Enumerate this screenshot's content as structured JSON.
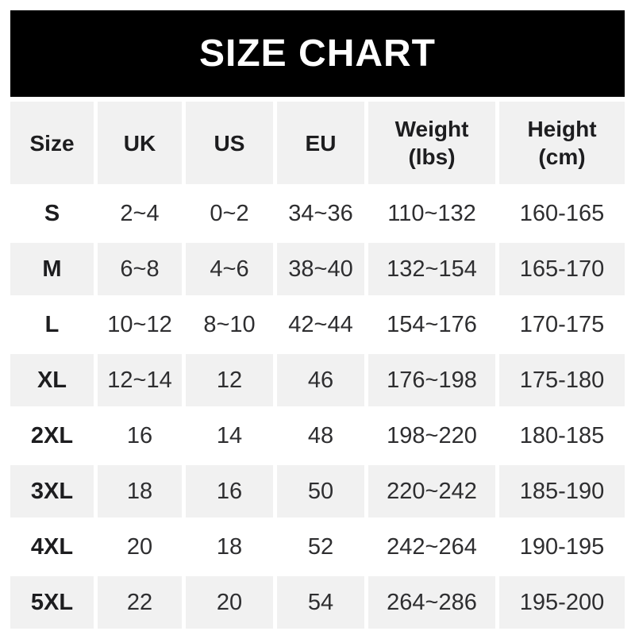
{
  "banner": {
    "note": "top black ribbon"
  },
  "colors": {
    "page_bg": "#ffffff",
    "banner_bg": "#000000",
    "banner_text": "#ffffff",
    "stripe_bg": "#f1f1f1",
    "row_bg": "#ffffff",
    "header_text": "#1d1d1f",
    "cell_text": "#2e2e30"
  },
  "chart_data": {
    "type": "table",
    "title": "SIZE CHART",
    "columns": [
      "Size",
      "UK",
      "US",
      "EU",
      "Weight (lbs)",
      "Height (cm)"
    ],
    "rows": [
      [
        "S",
        "2~4",
        "0~2",
        "34~36",
        "110~132",
        "160-165"
      ],
      [
        "M",
        "6~8",
        "4~6",
        "38~40",
        "132~154",
        "165-170"
      ],
      [
        "L",
        "10~12",
        "8~10",
        "42~44",
        "154~176",
        "170-175"
      ],
      [
        "XL",
        "12~14",
        "12",
        "46",
        "176~198",
        "175-180"
      ],
      [
        "2XL",
        "16",
        "14",
        "48",
        "198~220",
        "180-185"
      ],
      [
        "3XL",
        "18",
        "16",
        "50",
        "220~242",
        "185-190"
      ],
      [
        "4XL",
        "20",
        "18",
        "52",
        "242~264",
        "190-195"
      ],
      [
        "5XL",
        "22",
        "20",
        "54",
        "264~286",
        "195-200"
      ]
    ],
    "layout": {
      "banner_position": "top",
      "striped_rows": true,
      "stripe_pattern": "header gray, then alternating white/gray",
      "gridlines": "white gutters between columns and rows"
    }
  }
}
